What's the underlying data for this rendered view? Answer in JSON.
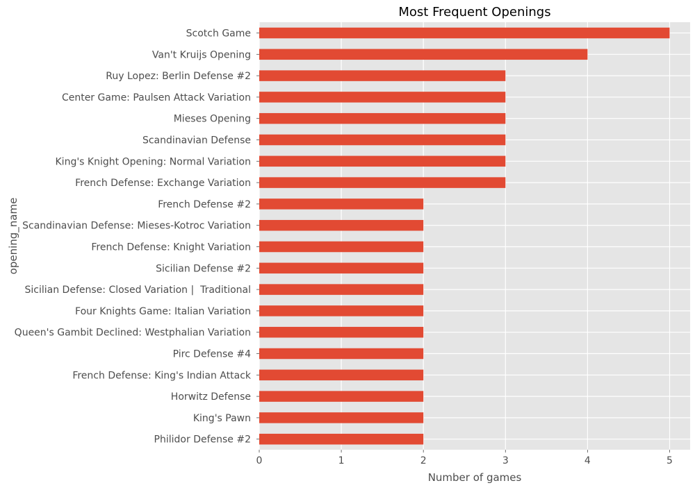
{
  "chart_data": {
    "type": "bar",
    "orientation": "horizontal",
    "title": "Most Frequent Openings",
    "xlabel": "Number of games",
    "ylabel": "opening_name",
    "xlim": [
      0,
      5.25
    ],
    "xticks": [
      "0",
      "1",
      "2",
      "3",
      "4",
      "5"
    ],
    "grid": true,
    "categories": [
      "Scotch Game",
      "Van't Kruijs Opening",
      "Ruy Lopez: Berlin Defense #2",
      "Center Game: Paulsen Attack Variation",
      "Mieses Opening",
      "Scandinavian Defense",
      "King's Knight Opening: Normal Variation",
      "French Defense: Exchange Variation",
      "French Defense #2",
      "Scandinavian Defense: Mieses-Kotroc Variation",
      "French Defense: Knight Variation",
      "Sicilian Defense #2",
      "Sicilian Defense: Closed Variation |  Traditional",
      "Four Knights Game: Italian Variation",
      "Queen's Gambit Declined: Westphalian Variation",
      "Pirc Defense #4",
      "French Defense: King's Indian Attack",
      "Horwitz Defense",
      "King's Pawn",
      "Philidor Defense #2"
    ],
    "values": [
      5,
      4,
      3,
      3,
      3,
      3,
      3,
      3,
      2,
      2,
      2,
      2,
      2,
      2,
      2,
      2,
      2,
      2,
      2,
      2
    ],
    "colors": {
      "bar": "#e24a33",
      "plot_background": "#e5e5e5",
      "grid": "#ffffff",
      "text": "#4d4d4d"
    }
  }
}
